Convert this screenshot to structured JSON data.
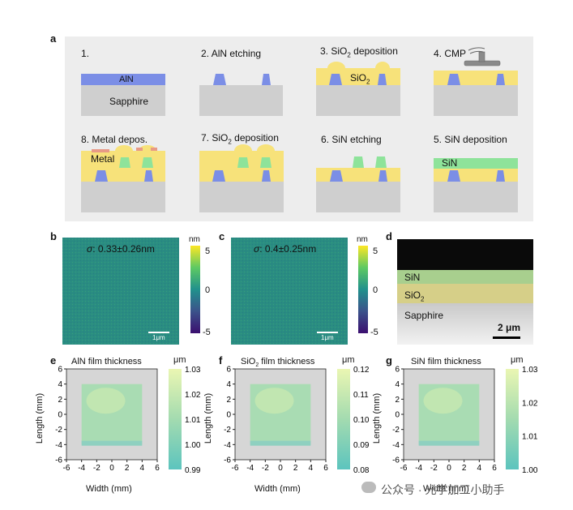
{
  "panel_labels": {
    "a": "a",
    "b": "b",
    "c": "c",
    "d": "d",
    "e": "e",
    "f": "f",
    "g": "g"
  },
  "process_steps": [
    {
      "number": "1.",
      "title": ""
    },
    {
      "number": "2.",
      "title": "AlN etching"
    },
    {
      "number": "3.",
      "title": "SiO",
      "sub": "2",
      "after": " deposition"
    },
    {
      "number": "4.",
      "title": "CMP"
    },
    {
      "number": "5.",
      "title": "SiN deposition"
    },
    {
      "number": "6.",
      "title": "SiN etching"
    },
    {
      "number": "7.",
      "title": "SiO",
      "sub": "2",
      "after": " deposition"
    },
    {
      "number": "8.",
      "title": "Metal depos."
    }
  ],
  "layer_labels": {
    "aln": "AlN",
    "sapphire": "Sapphire",
    "sio2_main": "SiO",
    "sio2_sub": "2",
    "sin": "SiN",
    "metal": "Metal"
  },
  "colors": {
    "panel_bg": "#ededed",
    "aln": "#7b8ee6",
    "sapphire": "#cfcfcf",
    "sio2": "#f7e27a",
    "sin": "#8ee39a",
    "metal_pad": "#e89a86",
    "cmp": "#8a8a8a"
  },
  "afm": [
    {
      "sigma_symbol": "σ",
      "sigma_value": ": 0.33±0.26nm",
      "scale": "1μm",
      "colorbar_unit": "nm",
      "ticks": [
        "5",
        "0",
        "-5"
      ]
    },
    {
      "sigma_symbol": "σ",
      "sigma_value": ": 0.4±0.25nm",
      "scale": "1μm",
      "colorbar_unit": "nm",
      "ticks": [
        "5",
        "0",
        "-5"
      ]
    }
  ],
  "sem": {
    "sin": "SiN",
    "sio2": "SiO",
    "sio2_sub": "2",
    "sapphire": "Sapphire",
    "scale": "2 μm"
  },
  "watermark": "公众号 · 光学加工小助手",
  "chart_data": [
    {
      "type": "heatmap",
      "title": "AlN film thickness",
      "title_main": "AlN",
      "title_rest": " film thickness",
      "xlabel": "Width (mm)",
      "ylabel": "Length (mm)",
      "xticks": [
        "-6",
        "-4",
        "-2",
        "0",
        "2",
        "4",
        "6"
      ],
      "yticks": [
        "6",
        "4",
        "2",
        "0",
        "-2",
        "-4",
        "-6"
      ],
      "xlim": [
        -6,
        6
      ],
      "ylim": [
        -6,
        6
      ],
      "measured_region": {
        "x": [
          -4,
          4
        ],
        "y": [
          -4,
          4
        ]
      },
      "colorbar": {
        "unit": "μm",
        "min": 0.99,
        "max": 1.03,
        "ticks": [
          "1.03",
          "1.02",
          "1.01",
          "1.00",
          "0.99"
        ]
      }
    },
    {
      "type": "heatmap",
      "title": "SiO2 film thickness",
      "title_main": "SiO",
      "title_sub": "2",
      "title_rest": " film thickness",
      "xlabel": "Width (mm)",
      "ylabel": "Length (mm)",
      "xticks": [
        "-6",
        "-4",
        "-2",
        "0",
        "2",
        "4",
        "6"
      ],
      "yticks": [
        "6",
        "4",
        "2",
        "0",
        "-2",
        "-4",
        "-6"
      ],
      "xlim": [
        -6,
        6
      ],
      "ylim": [
        -6,
        6
      ],
      "measured_region": {
        "x": [
          -4,
          4
        ],
        "y": [
          -4,
          4
        ]
      },
      "colorbar": {
        "unit": "μm",
        "min": 0.08,
        "max": 0.12,
        "ticks": [
          "0.12",
          "0.11",
          "0.10",
          "0.09",
          "0.08"
        ]
      }
    },
    {
      "type": "heatmap",
      "title": "SiN film thickness",
      "title_main": "SiN",
      "title_rest": " film thickness",
      "xlabel": "Width (mm)",
      "ylabel": "Length (mm)",
      "xticks": [
        "-6",
        "-4",
        "-2",
        "0",
        "2",
        "4",
        "6"
      ],
      "yticks": [
        "6",
        "4",
        "2",
        "0",
        "-2",
        "-4",
        "-6"
      ],
      "xlim": [
        -6,
        6
      ],
      "ylim": [
        -6,
        6
      ],
      "measured_region": {
        "x": [
          -4,
          4
        ],
        "y": [
          -4,
          4
        ]
      },
      "colorbar": {
        "unit": "μm",
        "min": 1.0,
        "max": 1.03,
        "ticks": [
          "1.03",
          "1.02",
          "1.01",
          "1.00"
        ]
      }
    }
  ]
}
